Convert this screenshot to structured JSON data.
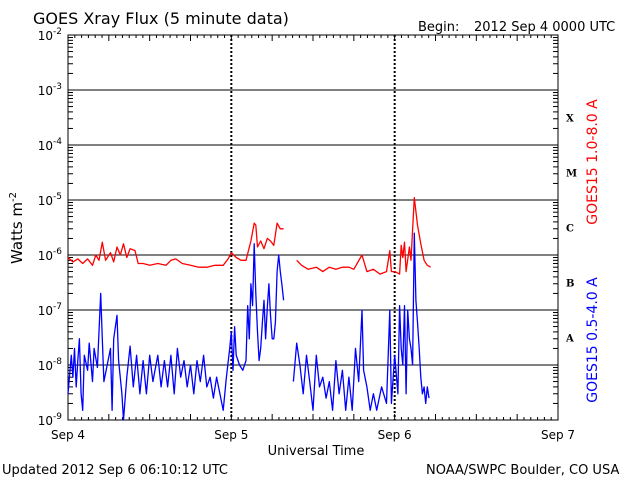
{
  "header": {
    "title": "GOES Xray Flux (5 minute data)",
    "begin_label": "Begin:",
    "begin_value": "2012 Sep 4 0000 UTC"
  },
  "footer": {
    "updated": "Updated 2012 Sep  6 06:10:12 UTC",
    "credit": "NOAA/SWPC Boulder, CO USA"
  },
  "chart_data": {
    "type": "line",
    "title": "GOES Xray Flux (5 minute data)",
    "xlabel": "Universal Time",
    "ylabel_text": "Watts m",
    "ylabel_exp": "-2",
    "y_scale": "log",
    "ylim": [
      1e-09,
      0.01
    ],
    "xlim_days": [
      0,
      3
    ],
    "x_ticks": [
      {
        "day": 0,
        "label": "Sep 4"
      },
      {
        "day": 1,
        "label": "Sep 5"
      },
      {
        "day": 2,
        "label": "Sep 6"
      },
      {
        "day": 3,
        "label": "Sep 7"
      }
    ],
    "y_ticks": [
      {
        "exp": -9,
        "base": "10",
        "sup": "-9"
      },
      {
        "exp": -8,
        "base": "10",
        "sup": "-8"
      },
      {
        "exp": -7,
        "base": "10",
        "sup": "-7"
      },
      {
        "exp": -6,
        "base": "10",
        "sup": "-6"
      },
      {
        "exp": -5,
        "base": "10",
        "sup": "-5"
      },
      {
        "exp": -4,
        "base": "10",
        "sup": "-4"
      },
      {
        "exp": -3,
        "base": "10",
        "sup": "-3"
      },
      {
        "exp": -2,
        "base": "10",
        "sup": "-2"
      }
    ],
    "flare_classes": [
      {
        "label": "A",
        "exp": -7.5
      },
      {
        "label": "B",
        "exp": -6.5
      },
      {
        "label": "C",
        "exp": -5.5
      },
      {
        "label": "M",
        "exp": -4.5
      },
      {
        "label": "X",
        "exp": -3.5
      }
    ],
    "grid": "horizontal lines at each decade from 1e-8 to 1e-3; dashed vertical at day boundaries",
    "series": [
      {
        "name": "GOES15 1.0-8.0 A",
        "color": "#ff0000",
        "points": [
          [
            0.0,
            9e-07
          ],
          [
            0.03,
            7.5e-07
          ],
          [
            0.06,
            8.5e-07
          ],
          [
            0.09,
            7e-07
          ],
          [
            0.12,
            8.5e-07
          ],
          [
            0.15,
            6.5e-07
          ],
          [
            0.17,
            1e-06
          ],
          [
            0.19,
            8e-07
          ],
          [
            0.21,
            1.7e-06
          ],
          [
            0.23,
            8e-07
          ],
          [
            0.26,
            1.1e-06
          ],
          [
            0.28,
            7.5e-07
          ],
          [
            0.3,
            1.4e-06
          ],
          [
            0.32,
            1e-06
          ],
          [
            0.34,
            1.6e-06
          ],
          [
            0.36,
            9e-07
          ],
          [
            0.38,
            1.3e-06
          ],
          [
            0.41,
            1.2e-06
          ],
          [
            0.43,
            7e-07
          ],
          [
            0.46,
            7e-07
          ],
          [
            0.5,
            6.5e-07
          ],
          [
            0.55,
            7e-07
          ],
          [
            0.6,
            6.5e-07
          ],
          [
            0.63,
            8e-07
          ],
          [
            0.66,
            8.5e-07
          ],
          [
            0.7,
            7e-07
          ],
          [
            0.75,
            6.5e-07
          ],
          [
            0.8,
            6e-07
          ],
          [
            0.85,
            6e-07
          ],
          [
            0.9,
            6.5e-07
          ],
          [
            0.95,
            6.5e-07
          ],
          [
            0.98,
            8.5e-07
          ],
          [
            1.0,
            1.1e-06
          ],
          [
            1.03,
            9e-07
          ],
          [
            1.06,
            8e-07
          ],
          [
            1.09,
            8e-07
          ],
          [
            1.12,
            1.8e-06
          ],
          [
            1.14,
            3.8e-06
          ],
          [
            1.15,
            3.5e-06
          ],
          [
            1.16,
            1.4e-06
          ],
          [
            1.18,
            1.8e-06
          ],
          [
            1.2,
            1.3e-06
          ],
          [
            1.22,
            2e-06
          ],
          [
            1.24,
            1.8e-06
          ],
          [
            1.26,
            1.5e-06
          ],
          [
            1.28,
            3.8e-06
          ],
          [
            1.3,
            3e-06
          ],
          [
            1.32,
            3e-06
          ]
        ],
        "points_b": [
          [
            1.4,
            8e-07
          ],
          [
            1.43,
            6.5e-07
          ],
          [
            1.47,
            5.5e-07
          ],
          [
            1.52,
            6e-07
          ],
          [
            1.56,
            5e-07
          ],
          [
            1.6,
            6e-07
          ],
          [
            1.64,
            5.5e-07
          ],
          [
            1.68,
            6e-07
          ],
          [
            1.72,
            6e-07
          ],
          [
            1.75,
            5.5e-07
          ],
          [
            1.8,
            1e-06
          ],
          [
            1.83,
            5e-07
          ],
          [
            1.87,
            5.5e-07
          ],
          [
            1.91,
            4.5e-07
          ],
          [
            1.95,
            5e-07
          ],
          [
            1.97,
            1.2e-06
          ],
          [
            1.98,
            5e-07
          ],
          [
            2.0,
            5e-07
          ],
          [
            2.03,
            4.5e-07
          ],
          [
            2.04,
            1.5e-06
          ],
          [
            2.05,
            9e-07
          ],
          [
            2.06,
            1.7e-06
          ],
          [
            2.07,
            5e-07
          ],
          [
            2.09,
            1.4e-06
          ],
          [
            2.1,
            8e-07
          ],
          [
            2.12,
            1.1e-05
          ],
          [
            2.14,
            3.5e-06
          ],
          [
            2.16,
            1.6e-06
          ],
          [
            2.18,
            8e-07
          ],
          [
            2.2,
            6.5e-07
          ],
          [
            2.22,
            6e-07
          ]
        ]
      },
      {
        "name": "GOES15 0.5-4.0 A",
        "color": "#0000ff",
        "points": [
          [
            0.0,
            3e-09
          ],
          [
            0.02,
            1.5e-08
          ],
          [
            0.03,
            6e-09
          ],
          [
            0.04,
            2e-08
          ],
          [
            0.05,
            4e-09
          ],
          [
            0.06,
            1.2e-08
          ],
          [
            0.07,
            3e-08
          ],
          [
            0.08,
            3e-09
          ],
          [
            0.09,
            1.5e-09
          ],
          [
            0.1,
            1.5e-08
          ],
          [
            0.12,
            8e-09
          ],
          [
            0.13,
            2.5e-08
          ],
          [
            0.15,
            5e-09
          ],
          [
            0.16,
            2e-08
          ],
          [
            0.18,
            9e-09
          ],
          [
            0.2,
            2e-07
          ],
          [
            0.21,
            3e-08
          ],
          [
            0.22,
            5e-09
          ],
          [
            0.24,
            1e-08
          ],
          [
            0.26,
            2e-08
          ],
          [
            0.27,
            1.5e-09
          ],
          [
            0.28,
            3e-08
          ],
          [
            0.3,
            8e-08
          ],
          [
            0.31,
            1.2e-08
          ],
          [
            0.33,
            3e-09
          ],
          [
            0.34,
            1e-09
          ],
          [
            0.36,
            6e-09
          ],
          [
            0.38,
            2.2e-08
          ],
          [
            0.4,
            4e-09
          ],
          [
            0.42,
            1.5e-08
          ],
          [
            0.44,
            3e-09
          ],
          [
            0.46,
            1.2e-08
          ],
          [
            0.48,
            3e-09
          ],
          [
            0.5,
            1.5e-08
          ],
          [
            0.52,
            5e-09
          ],
          [
            0.55,
            1.5e-08
          ],
          [
            0.57,
            4e-09
          ],
          [
            0.59,
            1.2e-08
          ],
          [
            0.61,
            4e-09
          ],
          [
            0.63,
            1.5e-08
          ],
          [
            0.65,
            3e-09
          ],
          [
            0.67,
            2e-08
          ],
          [
            0.69,
            6e-09
          ],
          [
            0.71,
            1.2e-08
          ],
          [
            0.73,
            4e-09
          ],
          [
            0.75,
            1e-08
          ],
          [
            0.77,
            3e-09
          ],
          [
            0.79,
            1.2e-08
          ],
          [
            0.81,
            5e-09
          ],
          [
            0.83,
            1.5e-08
          ],
          [
            0.85,
            4e-09
          ],
          [
            0.87,
            6e-09
          ],
          [
            0.89,
            2.5e-09
          ],
          [
            0.91,
            6e-09
          ],
          [
            0.93,
            3e-09
          ],
          [
            0.95,
            1.5e-09
          ],
          [
            0.97,
            6e-09
          ],
          [
            0.99,
            2e-08
          ],
          [
            1.0,
            4e-08
          ],
          [
            1.01,
            8e-09
          ],
          [
            1.02,
            5e-08
          ],
          [
            1.03,
            1.5e-08
          ],
          [
            1.05,
            1e-08
          ],
          [
            1.07,
            8e-09
          ],
          [
            1.09,
            1.2e-08
          ],
          [
            1.1,
            1.2e-07
          ],
          [
            1.11,
            3e-08
          ],
          [
            1.12,
            3e-07
          ],
          [
            1.13,
            1.2e-07
          ],
          [
            1.14,
            1.6e-06
          ],
          [
            1.15,
            2e-07
          ],
          [
            1.16,
            4e-08
          ],
          [
            1.17,
            1.2e-08
          ],
          [
            1.18,
            2e-08
          ],
          [
            1.19,
            6e-08
          ],
          [
            1.2,
            1.5e-07
          ],
          [
            1.21,
            3e-08
          ],
          [
            1.22,
            1.1e-07
          ],
          [
            1.23,
            3e-07
          ],
          [
            1.24,
            8e-08
          ],
          [
            1.25,
            3e-08
          ],
          [
            1.26,
            3e-08
          ],
          [
            1.27,
            6e-08
          ],
          [
            1.28,
            5e-07
          ],
          [
            1.29,
            1e-06
          ],
          [
            1.3,
            5e-07
          ],
          [
            1.31,
            2.8e-07
          ],
          [
            1.32,
            1.5e-07
          ]
        ],
        "points_b": [
          [
            1.38,
            5e-09
          ],
          [
            1.4,
            2.5e-08
          ],
          [
            1.42,
            1e-08
          ],
          [
            1.44,
            3e-09
          ],
          [
            1.46,
            1.5e-08
          ],
          [
            1.48,
            5e-09
          ],
          [
            1.5,
            1.5e-09
          ],
          [
            1.52,
            1.5e-08
          ],
          [
            1.54,
            4e-09
          ],
          [
            1.56,
            6e-09
          ],
          [
            1.58,
            2.5e-09
          ],
          [
            1.6,
            5e-09
          ],
          [
            1.62,
            1.5e-09
          ],
          [
            1.64,
            1.2e-08
          ],
          [
            1.66,
            3e-09
          ],
          [
            1.68,
            8e-09
          ],
          [
            1.7,
            1.5e-09
          ],
          [
            1.72,
            6e-09
          ],
          [
            1.74,
            1.5e-09
          ],
          [
            1.76,
            2e-08
          ],
          [
            1.78,
            5e-09
          ],
          [
            1.8,
            1e-07
          ],
          [
            1.81,
            8e-09
          ],
          [
            1.83,
            4e-09
          ],
          [
            1.85,
            1.5e-09
          ],
          [
            1.87,
            3e-09
          ],
          [
            1.89,
            1.5e-09
          ],
          [
            1.92,
            4e-09
          ],
          [
            1.95,
            2e-09
          ],
          [
            1.97,
            1e-07
          ],
          [
            1.98,
            2e-09
          ],
          [
            2.0,
            1.5e-08
          ],
          [
            2.02,
            3e-09
          ],
          [
            2.03,
            1.2e-07
          ],
          [
            2.04,
            2e-08
          ],
          [
            2.05,
            1e-08
          ],
          [
            2.06,
            1.2e-07
          ],
          [
            2.07,
            3e-09
          ],
          [
            2.08,
            1e-07
          ],
          [
            2.09,
            3e-08
          ],
          [
            2.1,
            2e-08
          ],
          [
            2.11,
            1e-08
          ],
          [
            2.12,
            2.5e-06
          ],
          [
            2.13,
            1.5e-07
          ],
          [
            2.14,
            6e-08
          ],
          [
            2.15,
            2e-08
          ],
          [
            2.16,
            6e-09
          ],
          [
            2.17,
            3e-09
          ],
          [
            2.18,
            4e-09
          ],
          [
            2.19,
            2e-09
          ],
          [
            2.2,
            4e-09
          ],
          [
            2.21,
            2.5e-09
          ]
        ]
      }
    ]
  }
}
